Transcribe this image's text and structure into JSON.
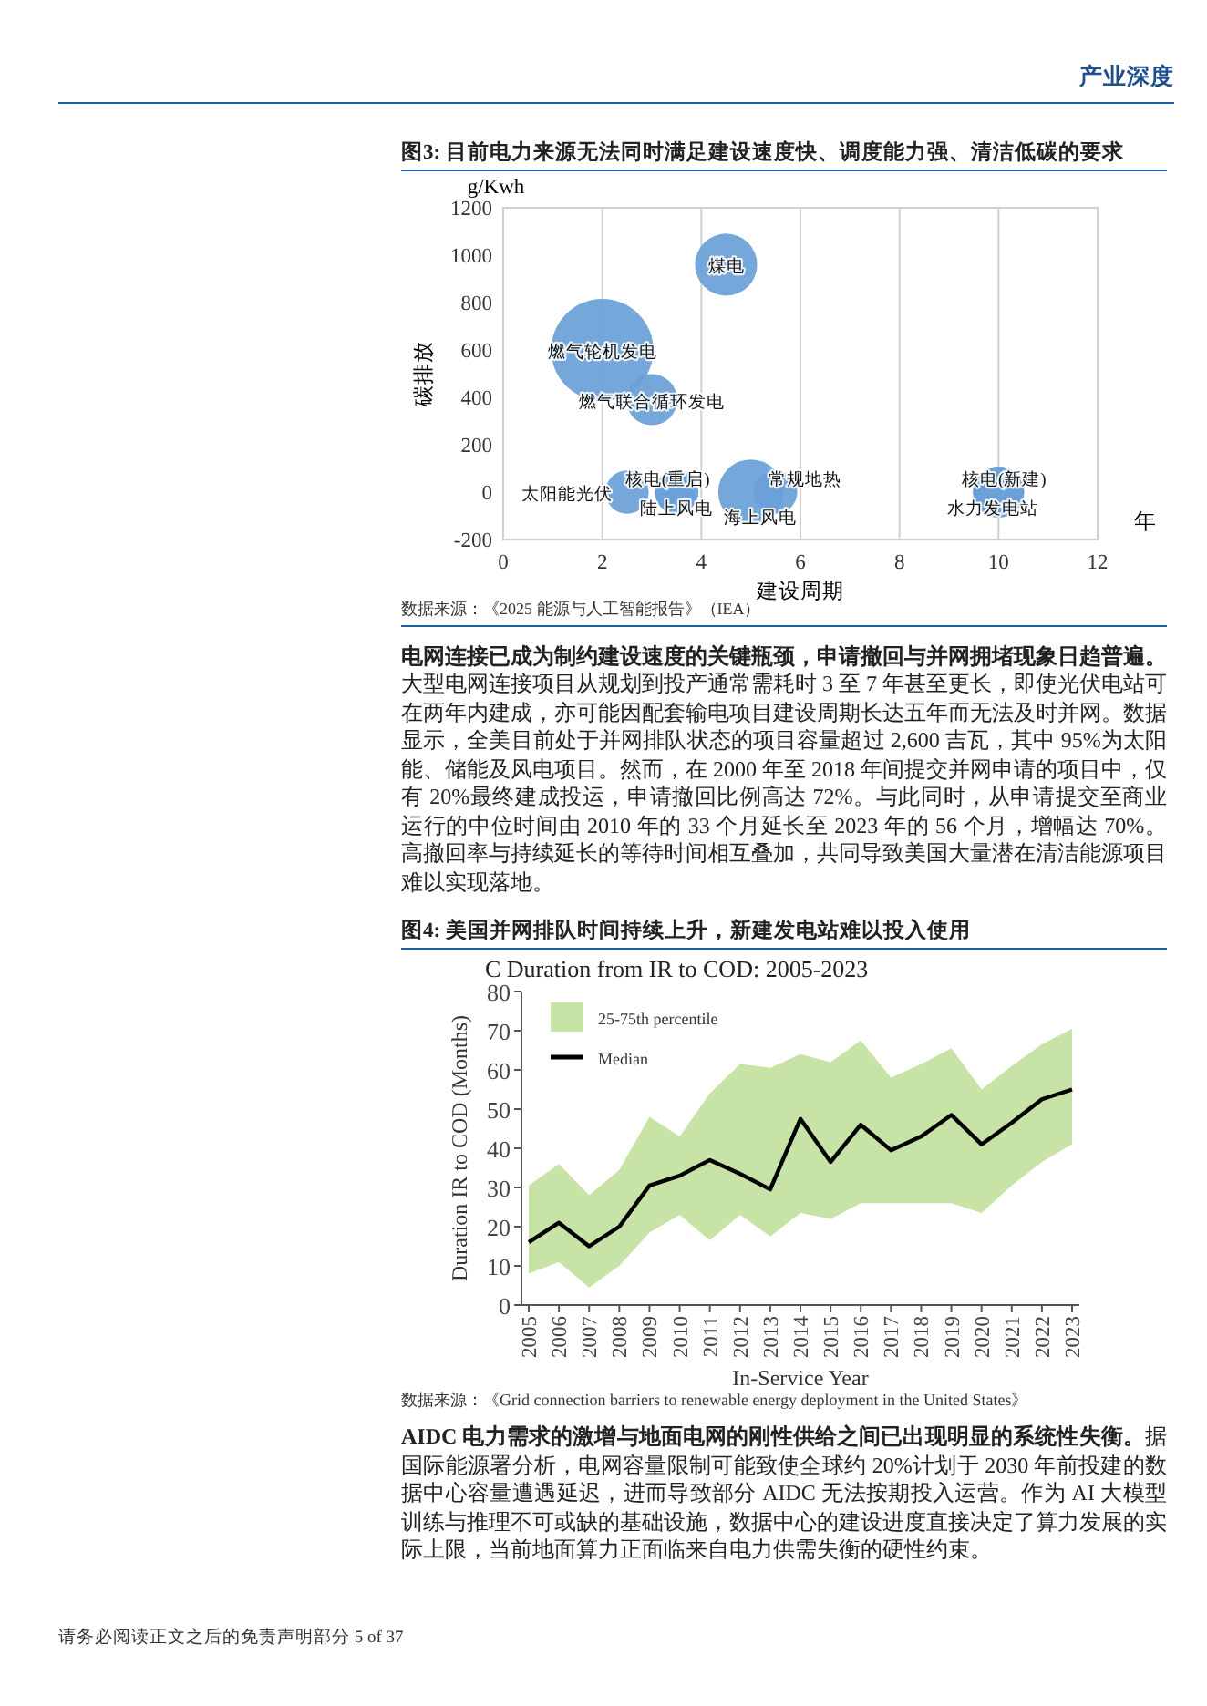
{
  "chart_data": [
    {
      "type": "bubble",
      "title": "图3: 目前电力来源无法同时满足建设速度快、调度能力强、清洁低碳的要求",
      "xlabel": "建设周期",
      "ylabel": "碳排放",
      "x": [
        4.5,
        2,
        3,
        2.5,
        3.5,
        3.5,
        5,
        5.5,
        10,
        10
      ],
      "values": [
        960,
        600,
        390,
        0,
        0,
        0,
        0,
        0,
        0,
        0
      ],
      "sizes": [
        0.37,
        1,
        0.25,
        0.18,
        0.18,
        0.18,
        0.41,
        0.18,
        0.25,
        0.25
      ],
      "color": "#6a9fd8",
      "xlim": [
        0,
        12
      ],
      "ylim": [
        -200,
        1200
      ],
      "xticks": [
        0,
        2,
        4,
        6,
        8,
        10,
        12
      ],
      "yticks": [
        -200,
        0,
        200,
        400,
        600,
        800,
        1000,
        1200
      ],
      "grid": "x",
      "annotations": [
        "产业深度",
        "g/Kwh",
        "年",
        "数据来源：《2025 能源与人工智能报告》（IEA）",
        "电网连接已成为制约建设速度的关键瓶颈，申请撤回与并网拥堵现象日趋普遍。",
        "大型电网连接项目从规划到投产通常需耗时 3 至 7 年甚至更长，即使光伏电站可在两年内建成，亦可能因配套输电项目建设周期长达五年而无法及时并网。数据显示，全美目前处于并网排队状态的项目容量超过 2,600 吉瓦，其中 95%为太阳能、储能及风电项目。然而，在 2000 年至 2018 年间提交并网申请的项目中，仅有 20%最终建成投运，申请撤回比例高达 72%。与此同时，从申请提交至商业运行的中位时间由 2010 年的 33 个月延长至 2023 年的 56 个月，增幅达 70%。高撤回率与持续延长的等待时间相互叠加，共同导致美国大量潜在清洁能源项目难以实现落地。",
        {
          "text": "煤电",
          "x": 4.5,
          "y": 960
        },
        {
          "text": "燃气轮机发电",
          "x": 2,
          "y": 600
        },
        {
          "text": "燃气联合循环发电",
          "x": 3,
          "y": 390
        },
        {
          "text": "太阳能光伏",
          "x": 2.5,
          "y": 0
        },
        {
          "text": "核电(重启)",
          "x": 3.5,
          "y": 0
        },
        {
          "text": "陆上风电",
          "x": 3.5,
          "y": 0
        },
        {
          "text": "海上风电",
          "x": 5,
          "y": 0
        },
        {
          "text": "常规地热",
          "x": 5.5,
          "y": 0
        },
        {
          "text": "核电(新建)",
          "x": 10,
          "y": 0
        },
        {
          "text": "水力发电站",
          "x": 10,
          "y": 0
        }
      ]
    },
    {
      "type": "line",
      "title": "图4: 美国并网排队时间持续上升，新建发电站难以投入使用",
      "subtitle": "C Duration from IR to COD: 2005-2023",
      "xlabel": "In-Service Year",
      "ylabel": "Duration IR to COD (Months)",
      "categories": [
        "2005",
        "2006",
        "2007",
        "2008",
        "2009",
        "2010",
        "2011",
        "2012",
        "2013",
        "2014",
        "2015",
        "2016",
        "2017",
        "2018",
        "2019",
        "2020",
        "2021",
        "2022",
        "2023"
      ],
      "series": [
        {
          "name": "Median",
          "type": "line",
          "color": "#000000",
          "values": [
            16,
            21,
            15,
            20,
            30.5,
            33,
            37,
            33.5,
            29.5,
            47.5,
            36.5,
            46,
            39.5,
            43,
            48.5,
            41,
            46.5,
            52.5,
            55
          ],
          "lower": [
            8,
            11,
            4.5,
            10,
            18.5,
            23,
            16.5,
            23,
            17.5,
            23.5,
            22,
            26,
            26,
            26,
            26,
            23.5,
            30.5,
            36.5,
            41
          ],
          "upper": [
            30.5,
            36,
            28,
            34.5,
            48,
            43,
            54,
            61.5,
            60.5,
            64,
            62,
            67.5,
            58,
            61.5,
            65.5,
            55,
            61,
            66.5,
            70.5
          ]
        }
      ],
      "ylim": [
        0,
        80
      ],
      "yticks": [
        0,
        10,
        20,
        30,
        40,
        50,
        60,
        70,
        80
      ],
      "legend": "top left",
      "annotations": [
        "数据来源：《Grid connection barriers to renewable energy deployment in the United States》",
        "AIDC 电力需求的激增与地面电网的刚性供给之间已出现明显的系统性失衡。",
        "据国际能源署分析，电网容量限制可能致使全球约 20%计划于 2030 年前投建的数据中心容量遭遇延迟，进而导致部分 AIDC 无法按期投入运营。作为 AI 大模型训练与推理不可或缺的基础设施，数据中心的建设进度直接决定了算力发展的实际上限，当前地面算力正面临来自电力供需失衡的硬性约束。",
        "请务必阅读正文之后的免责声明部分 5 of 37",
        "25-75th percentile"
      ]
    }
  ]
}
